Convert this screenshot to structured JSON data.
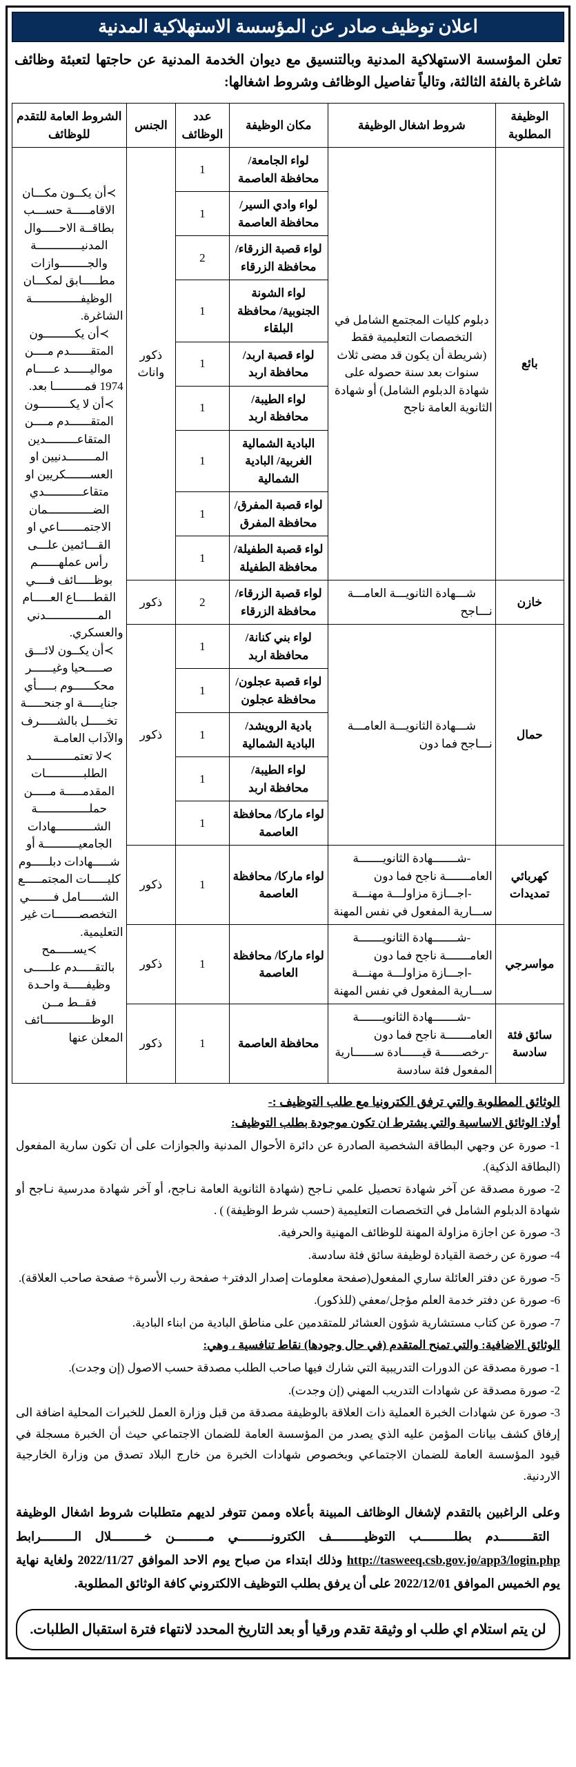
{
  "title": "اعلان توظيف صادر عن المؤسسة الاستهلاكية المدنية",
  "intro": "تعلن المؤسسة الاستهلاكية المدنية وبالتنسيق مع ديوان الخدمة المدنية عن حاجتها لتعبئة وظائف شاغرة بالفئة الثالثة، وتالياً تفاصيل الوظائف وشروط اشغالها:",
  "headers": {
    "job": "الوظيفة المطلوبة",
    "cond": "شروط اشغال الوظيفة",
    "loc": "مكان الوظيفة",
    "num": "عدد الوظائف",
    "gen": "الجنس",
    "req": "الشروط العامة للتقدم للوظائف"
  },
  "common_req": "≻أن يكــون مكـــان الاقامـــــة حســـب بطاقــة الاحـــــوال المدنيـــــــــــــة والجــــــــوازات مطـــــابق لمكـــان الوظيفــــــــــــــة الشاغرة.\n≻أن يكـــــــــون المتقــــــدم مــــن مواليــــــد عـــــام 1974 فمـــــــــا بعد.\n≻أن لا يكـــــــــون المتقــــــدم مــــن المتقاعـــــــــدين المــــــــدنيين او العســـــــكريين او متقاعـــــــــــدي الضـــــــــــــمان الاجتمـــــــاعي او القـــائمين علـــى رأس عملهــــــم بوظـــــائف فــــي القطـــــاع العـــــام المـــــــــــــــدني والعسكري.\n≻أن يكــون لائـــق صـــــحيا وغيــــــر محكــــــوم بـــــأي جنايـــــة او جنحـــــة تخـــــل بالشـــــرف والآداب العامـة\n≻لا تعتمــــــــــــد الطلبـــــــــــات المقدمـــــة مـــــن حملـــــــــــــــة الشـــــــــــهادات الجامعيــــــــــة أو شـــــهادات دبلـــــوم كليـــــات المجتمـــــع الشــــــامل فـــــــي التخصصـــــــات غير التعليمية.\n≻يســـــمح بالتقـــــدم علـــــى وظيفـــــة واحـدة فقــط مــن الوظــــــــــــــائف المعلن عنها",
  "jobs": [
    {
      "title": "بائع",
      "cond": "دبلوم كليات المجتمع الشامل في التخصصات التعليمية فقط (شريطة أن يكون قد مضى ثلاث سنوات بعد سنة حصوله على شهادة الدبلوم الشامل) أو شهادة الثانوية العامة ناجح",
      "gen": "ذكور واناث",
      "rows": [
        {
          "loc": "لواء الجامعة/ محافظة العاصمة",
          "num": "1"
        },
        {
          "loc": "لواء وادي السير/ محافظة العاصمة",
          "num": "1"
        },
        {
          "loc": "لواء قصبة الزرقاء/ محافظة الزرقاء",
          "num": "2"
        },
        {
          "loc": "لواء الشونة الجنوبية/ محافظة البلقاء",
          "num": "1"
        },
        {
          "loc": "لواء قصبة اربد/ محافظة اربد",
          "num": "1"
        },
        {
          "loc": "لواء الطيبة/ محافظة اربد",
          "num": "1"
        },
        {
          "loc": "البادية الشمالية الغربية/ البادية الشمالية",
          "num": "1"
        },
        {
          "loc": "لواء قصبة المفرق/ محافظة المفرق",
          "num": "1"
        },
        {
          "loc": "لواء قصبة الطفيلة/ محافظة الطفيلة",
          "num": "1"
        }
      ]
    },
    {
      "title": "خازن",
      "cond": "شـــهادة الثانويـــة العامـــة نـــاجح",
      "gen": "ذكور",
      "rows": [
        {
          "loc": "لواء قصبة الزرقاء/ محافظة الزرقاء",
          "num": "2"
        }
      ]
    },
    {
      "title": "حمال",
      "cond": "شـــهادة الثانويـــة العامـــة نـــاجح فما دون",
      "gen": "ذكور",
      "rows": [
        {
          "loc": "لواء بني كنانة/ محافظة اربد",
          "num": "1"
        },
        {
          "loc": "لواء قصبة عجلون/ محافظة عجلون",
          "num": "1"
        },
        {
          "loc": "بادية الرويشد/ البادية الشمالية",
          "num": "1"
        },
        {
          "loc": "لواء الطيبة/ محافظة اربد",
          "num": "1"
        },
        {
          "loc": "لواء ماركا/ محافظة العاصمة",
          "num": "1"
        }
      ]
    },
    {
      "title": "كهربائي تمديدات",
      "cond": "-شـــــــهادة الثانويـــــــة العامـــــــة ناجح فما دون\n-اجـــازة مزاولـــة مهنـــة ســـارية المفعول في نفس المهنة",
      "gen": "ذكور",
      "rows": [
        {
          "loc": "لواء ماركا/ محافظة العاصمة",
          "num": "1"
        }
      ]
    },
    {
      "title": "مواسرجي",
      "cond": "-شـــــــهادة الثانويـــــــة العامـــــــة ناجح فما دون\n-اجـــازة مزاولـــة مهنـــة ســـارية المفعول في نفس المهنة",
      "gen": "ذكور",
      "rows": [
        {
          "loc": "لواء ماركا/ محافظة العاصمة",
          "num": "1"
        }
      ]
    },
    {
      "title": "سائق فئة سادسة",
      "cond": "-شـــــــهادة الثانويـــــــة العامـــــــة ناجح فما دون\n-رخصــــــة قيــــــادة ســــــارية المفعول فئة سادسة",
      "gen": "ذكور",
      "rows": [
        {
          "loc": "محافظة العاصمة",
          "num": "1"
        }
      ]
    }
  ],
  "docs_header": "الوثائق المطلوبة والتي ترفق الكترونيا مع طلب التوظيف :-",
  "docs_sub1": "أولا: الوثائق الاساسية والتي يشترط ان تكون موجودة بطلب التوظيف:",
  "docs_basic": [
    "1- صورة عن وجهي البطاقة الشخصية الصادرة عن دائرة الأحوال المدنية والجوازات على أن تكون سارية المفعول (البطاقة الذكية).",
    "2- صورة مصدقة عن آخر شهادة تحصيل علمي نـاجح (شهادة الثانوية العامة نـاجح، أو آخر شهادة مدرسية نـاجح أو شهادة الدبلوم الشامل في التخصصات التعليمية (حسب شرط الوظيفة) ) .",
    "3- صورة عن اجازة مزاولة المهنة للوظائف المهنية والحرفية.",
    "4- صورة عن رخصة القيادة لوظيفة سائق فئة سادسة.",
    "5- صورة عن دفتر العائلة ساري المفعول(صفحة معلومات إصدار الدفتر+ صفحة رب الأسرة+ صفحة صاحب العلاقة).",
    "6- صورة عن دفتر خدمة العلم مؤجل/معفي (للذكور).",
    "7- صورة عن كتاب مستشارية شؤون العشائر للمتقدمين على مناطق البادية من ابناء البادية."
  ],
  "docs_sub2": "الوثائق الاضافية: والتي تمنح المتقدم (في حال وجودها) نقاط تنافسية ، وهي:",
  "docs_extra": [
    "1- صورة مصدقة عن الدورات التدريبية التي شارك فيها صاحب الطلب مصدقة حسب الاصول (إن وجدت).",
    "2- صورة مصدقة عن شهادات التدريب المهني (إن وجدت).",
    "3- صورة عن شهادات الخبرة العملية ذات العلاقة بالوظيفة مصدقة من قبل وزارة العمل للخبرات المحلية اضافة الى إرفاق كشف بيانات المؤمن عليه الذي يصدر من المؤسسة العامة للضمان الاجتماعي حيث أن الخبرة مسجلة في قيود المؤسسة العامة للضمان الاجتماعي وبخصوص شهادات الخبرة من خارج البلاد تصدق من وزارة الخارجية الاردنية."
  ],
  "apply_text_1": "وعلى الراغبين بالتقدم لإشغال الوظائف المبينة بأعلاه وممن تتوفر لديهم متطلبات شروط اشغال الوظيفة التقـــــــــدم بطلـــــــــب التوظيـــــــــف الكترونـــــــــي مـــــــــن خـــــــــلال الـــــــــرابط ",
  "apply_link": "http://tasweeq.csb.gov.jo/app3/login.php",
  "apply_text_2": " وذلك ابتداء من صباح يوم الاحد الموافق 2022/11/27 ولغاية نهاية يوم الخميس الموافق 2022/12/01 على أن يرفق بطلب التوظيف الالكتروني كافة الوثائق المطلوبة.",
  "notice": "لن يتم استلام اي طلب او وثيقة تقدم ورقيا أو بعد التاريخ المحدد لانتهاء فترة استقبال الطلبات."
}
